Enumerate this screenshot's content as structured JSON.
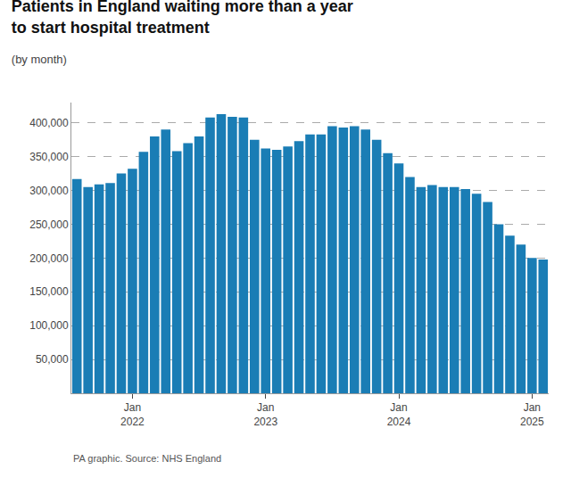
{
  "chart_data": {
    "type": "bar",
    "title": "Patients in England waiting more than a year\nto start hospital treatment",
    "subtitle": "(by month)",
    "annotations": [
      "PA graphic. Source: NHS England"
    ],
    "categories": [
      null,
      null,
      null,
      null,
      null,
      "Jan\n2022",
      null,
      null,
      null,
      null,
      null,
      null,
      null,
      null,
      null,
      null,
      null,
      "Jan\n2023",
      null,
      null,
      null,
      null,
      null,
      null,
      null,
      null,
      null,
      null,
      null,
      "Jan\n2024",
      null,
      null,
      null,
      null,
      null,
      null,
      null,
      null,
      null,
      null,
      null,
      "Jan\n2025",
      null
    ],
    "values": [
      317000,
      305000,
      309000,
      311000,
      325000,
      332000,
      357000,
      380000,
      390000,
      358000,
      370000,
      380000,
      408000,
      413000,
      409000,
      408000,
      375000,
      362000,
      360000,
      365000,
      373000,
      383000,
      383000,
      395000,
      393000,
      395000,
      390000,
      375000,
      355000,
      340000,
      320000,
      305000,
      308000,
      305000,
      305000,
      302000,
      295000,
      283000,
      250000,
      233000,
      220000,
      200000,
      198000
    ],
    "color": "#1a7db5",
    "ylim": [
      0,
      430000
    ],
    "yticks": [
      {
        "value": 50000,
        "label": "50,000"
      },
      {
        "value": 100000,
        "label": "100,000"
      },
      {
        "value": 150000,
        "label": "150,000"
      },
      {
        "value": 200000,
        "label": "200,000"
      },
      {
        "value": 250000,
        "label": "250,000"
      },
      {
        "value": 300000,
        "label": "300,000"
      },
      {
        "value": 350000,
        "label": "350,000"
      },
      {
        "value": 400000,
        "label": "400,000"
      }
    ],
    "grid": true
  }
}
